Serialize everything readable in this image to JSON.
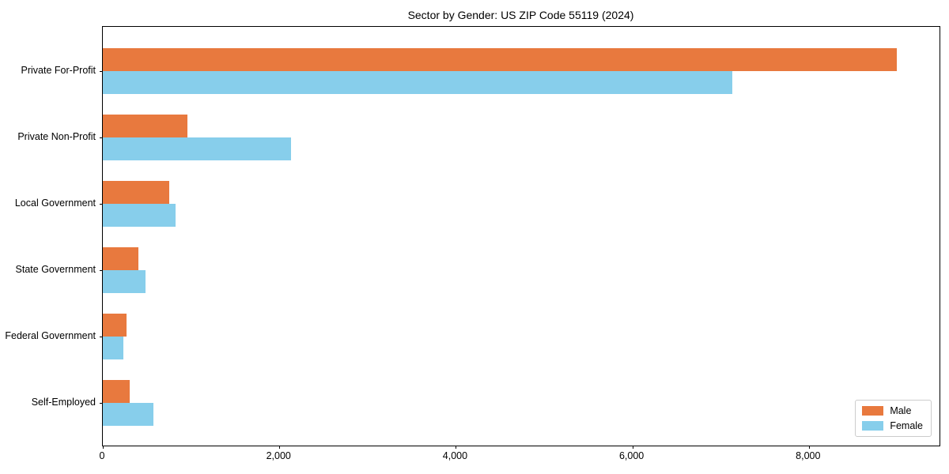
{
  "title": "Sector by Gender: US ZIP Code 55119 (2024)",
  "colors": {
    "male": "#e8793e",
    "female": "#87ceeb",
    "axis": "#000000",
    "legend_border": "#cccccc",
    "background": "#ffffff"
  },
  "chart_data": {
    "type": "bar",
    "orientation": "horizontal",
    "title": "Sector by Gender: US ZIP Code 55119 (2024)",
    "categories": [
      "Private For-Profit",
      "Private Non-Profit",
      "Local Government",
      "State Government",
      "Federal Government",
      "Self-Employed"
    ],
    "series": [
      {
        "name": "Male",
        "color": "#e8793e",
        "values": [
          9000,
          960,
          750,
          400,
          270,
          300
        ]
      },
      {
        "name": "Female",
        "color": "#87ceeb",
        "values": [
          7130,
          2130,
          820,
          480,
          230,
          570
        ]
      }
    ],
    "xlabel": "",
    "ylabel": "",
    "xlim": [
      0,
      9480
    ],
    "xticks": [
      0,
      2000,
      4000,
      6000,
      8000
    ],
    "xtick_labels": [
      "0",
      "2,000",
      "4,000",
      "6,000",
      "8,000"
    ],
    "grid": false,
    "legend_position": "lower right"
  }
}
